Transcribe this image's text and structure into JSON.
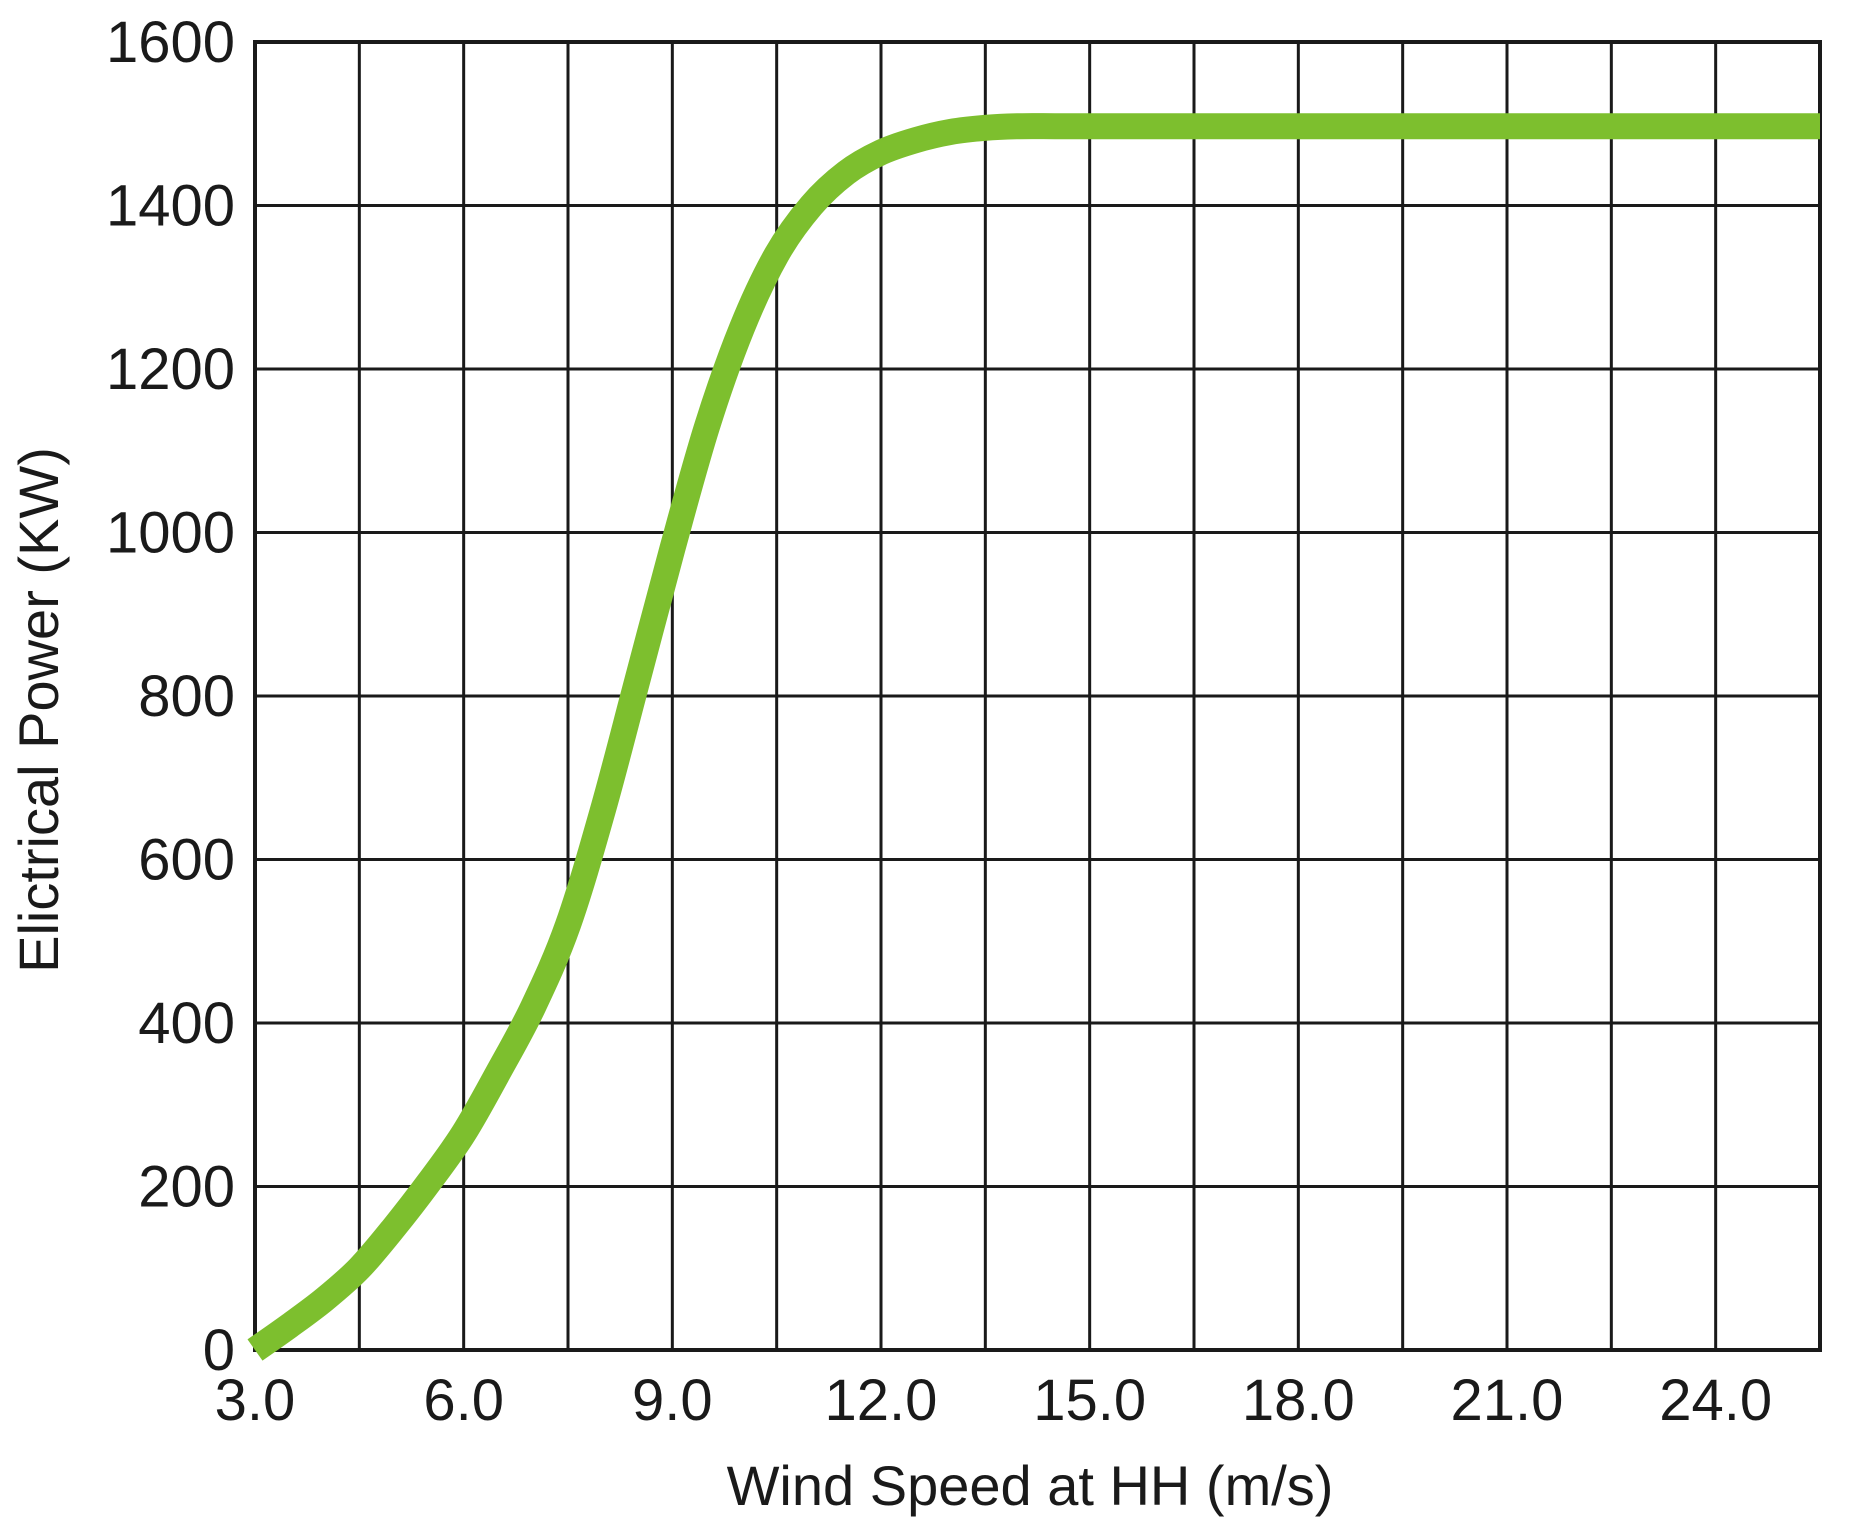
{
  "chart_data": {
    "type": "line",
    "title": "",
    "xlabel": "Wind Speed at HH (m/s)",
    "ylabel": "Elictrical Power (KW)",
    "xlim": [
      3.0,
      25.5
    ],
    "ylim": [
      0,
      1600
    ],
    "x_ticks": [
      3.0,
      6.0,
      9.0,
      12.0,
      15.0,
      18.0,
      21.0,
      24.0
    ],
    "x_tick_labels": [
      "3.0",
      "6.0",
      "9.0",
      "12.0",
      "15.0",
      "18.0",
      "21.0",
      "24.0"
    ],
    "y_ticks": [
      0,
      200,
      400,
      600,
      800,
      1000,
      1200,
      1400,
      1600
    ],
    "y_tick_labels": [
      "0",
      "200",
      "400",
      "600",
      "800",
      "1000",
      "1200",
      "1400",
      "1600"
    ],
    "x_gridlines": [
      3.0,
      4.5,
      6.0,
      7.5,
      9.0,
      10.5,
      12.0,
      13.5,
      15.0,
      16.5,
      18.0,
      19.5,
      21.0,
      22.5,
      24.0,
      25.5
    ],
    "y_gridlines": [
      0,
      200,
      400,
      600,
      800,
      1000,
      1200,
      1400,
      1600
    ],
    "grid": true,
    "line_color": "#7dbf2e",
    "series": [
      {
        "x": [
          3.0,
          3.5,
          4.0,
          4.5,
          5.0,
          5.5,
          6.0,
          6.5,
          7.0,
          7.5,
          8.0,
          8.5,
          9.0,
          9.5,
          10.0,
          10.5,
          11.0,
          11.5,
          12.0,
          12.5,
          13.0,
          13.5,
          14.0,
          14.5,
          15.0,
          18.0,
          21.0,
          24.0,
          25.5
        ],
        "y": [
          0,
          30,
          62,
          100,
          150,
          205,
          265,
          340,
          420,
          520,
          660,
          820,
          980,
          1130,
          1250,
          1340,
          1400,
          1440,
          1465,
          1480,
          1490,
          1495,
          1497,
          1497,
          1497,
          1497,
          1497,
          1497,
          1497
        ]
      }
    ]
  }
}
